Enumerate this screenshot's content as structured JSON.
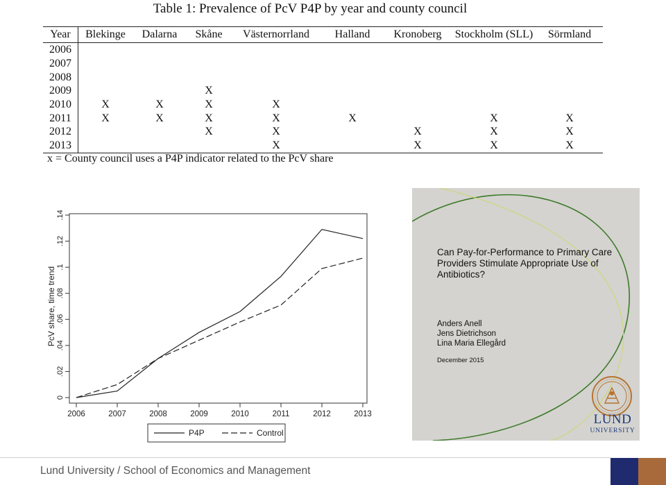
{
  "table": {
    "title": "Table 1: Prevalence of PcV P4P by year and county council",
    "columns": [
      "Year",
      "Blekinge",
      "Dalarna",
      "Skåne",
      "Västernorrland",
      "Halland",
      "Kronoberg",
      "Stockholm (SLL)",
      "Sörmland"
    ],
    "rows": [
      {
        "year": "2006",
        "cells": [
          "",
          "",
          "",
          "",
          "",
          "",
          "",
          ""
        ]
      },
      {
        "year": "2007",
        "cells": [
          "",
          "",
          "",
          "",
          "",
          "",
          "",
          ""
        ]
      },
      {
        "year": "2008",
        "cells": [
          "",
          "",
          "",
          "",
          "",
          "",
          "",
          ""
        ]
      },
      {
        "year": "2009",
        "cells": [
          "",
          "",
          "X",
          "",
          "",
          "",
          "",
          ""
        ]
      },
      {
        "year": "2010",
        "cells": [
          "X",
          "X",
          "X",
          "X",
          "",
          "",
          "",
          ""
        ]
      },
      {
        "year": "2011",
        "cells": [
          "X",
          "X",
          "X",
          "X",
          "X",
          "",
          "X",
          "X"
        ]
      },
      {
        "year": "2012",
        "cells": [
          "",
          "",
          "X",
          "X",
          "",
          "X",
          "X",
          "X"
        ]
      },
      {
        "year": "2013",
        "cells": [
          "",
          "",
          "",
          "X",
          "",
          "X",
          "X",
          "X"
        ]
      }
    ],
    "note": "x = County council uses a P4P indicator related to the PcV share"
  },
  "chart_data": {
    "type": "line",
    "x": [
      2006,
      2007,
      2008,
      2009,
      2010,
      2011,
      2012,
      2013
    ],
    "series": [
      {
        "name": "P4P",
        "style": "solid",
        "values": [
          0.0,
          0.005,
          0.03,
          0.05,
          0.066,
          0.093,
          0.129,
          0.122
        ]
      },
      {
        "name": "Control",
        "style": "dashed",
        "values": [
          0.0,
          0.01,
          0.03,
          0.044,
          0.058,
          0.071,
          0.099,
          0.107
        ]
      }
    ],
    "ylabel": "PcV share, time trend",
    "xlabel": "",
    "ylim": [
      0,
      0.14
    ],
    "xlim": [
      2006,
      2013
    ],
    "yticks": [
      "0",
      ".02",
      ".04",
      ".06",
      ".08",
      ".1",
      ".12",
      ".14"
    ],
    "xticks": [
      "2006",
      "2007",
      "2008",
      "2009",
      "2010",
      "2011",
      "2012",
      "2013"
    ],
    "legend_position": "bottom",
    "grid": false
  },
  "cover": {
    "title": "Can Pay-for-Performance to Primary Care Providers Stimulate Appropriate Use of Antibiotics?",
    "authors": [
      "Anders Anell",
      "Jens Dietrichson",
      "Lina Maria Ellegård"
    ],
    "date": "December 2015",
    "brand_line1": "LUND",
    "brand_line2": "UNIVERSITY",
    "arc_color_dark": "#3d7a2a",
    "arc_color_light": "#cfd67a"
  },
  "footer": {
    "text": "Lund University / School of Economics and Management",
    "colors": [
      "#1f2b6e",
      "#a86a3a"
    ]
  }
}
